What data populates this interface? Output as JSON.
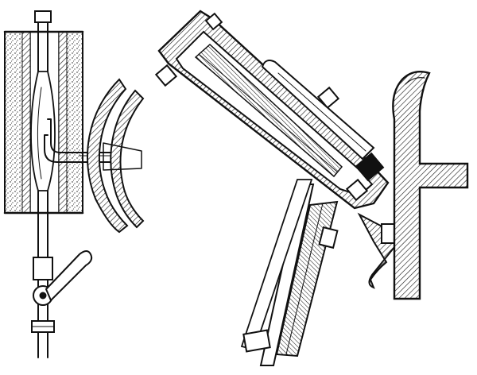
{
  "figure": {
    "ink_color": "#111111",
    "paper_color": "#ffffff",
    "parts": {
      "left": [
        "insulating-jacket",
        "feed-rod",
        "bent-nozzle-tube",
        "curved-retort-wall",
        "lever-clamp",
        "rod-collar"
      ],
      "right": [
        "inclined-casing",
        "casing-bolts",
        "inner-tube",
        "outer-tube",
        "feed-pipe",
        "nozzle-seat",
        "cast-iron-wall"
      ]
    }
  }
}
